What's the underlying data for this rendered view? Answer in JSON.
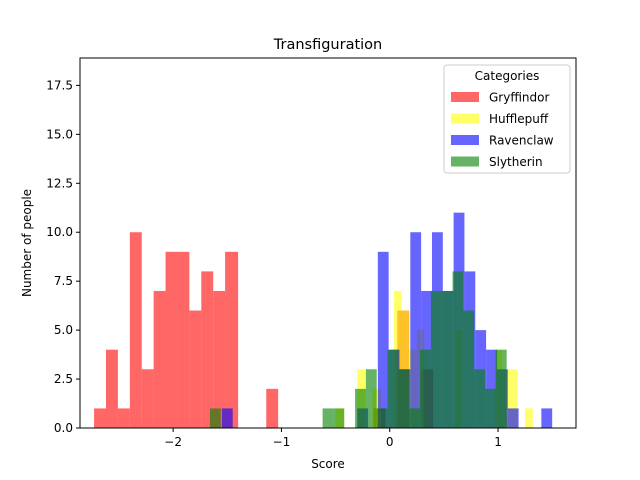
{
  "chart_data": {
    "type": "histogram",
    "title": "Transfiguration",
    "xlabel": "Score",
    "ylabel": "Number of people",
    "xlim": [
      -2.86,
      1.72
    ],
    "ylim": [
      0,
      18.9
    ],
    "xticks": [
      -2,
      -1,
      0,
      1
    ],
    "xtick_labels": [
      "−2",
      "−1",
      "0",
      "1"
    ],
    "yticks": [
      0,
      2.5,
      5,
      7.5,
      10,
      12.5,
      15,
      17.5
    ],
    "ytick_labels": [
      "0.0",
      "2.5",
      "5.0",
      "7.5",
      "10.0",
      "12.5",
      "15.0",
      "17.5"
    ],
    "legend": {
      "title": "Categories",
      "placement": "upper-right"
    },
    "series": [
      {
        "name": "Gryffindor",
        "color": "#ff0000",
        "bins": [
          {
            "x0": -2.73,
            "x1": -2.62,
            "count": 1
          },
          {
            "x0": -2.62,
            "x1": -2.51,
            "count": 4
          },
          {
            "x0": -2.51,
            "x1": -2.4,
            "count": 1
          },
          {
            "x0": -2.4,
            "x1": -2.29,
            "count": 10
          },
          {
            "x0": -2.29,
            "x1": -2.18,
            "count": 3
          },
          {
            "x0": -2.18,
            "x1": -2.07,
            "count": 7
          },
          {
            "x0": -2.07,
            "x1": -1.96,
            "count": 9
          },
          {
            "x0": -1.96,
            "x1": -1.85,
            "count": 9
          },
          {
            "x0": -1.85,
            "x1": -1.74,
            "count": 6
          },
          {
            "x0": -1.74,
            "x1": -1.63,
            "count": 8
          },
          {
            "x0": -1.63,
            "x1": -1.52,
            "count": 7
          },
          {
            "x0": -1.52,
            "x1": -1.4,
            "count": 9
          },
          {
            "x0": -1.14,
            "x1": -1.03,
            "count": 2
          },
          {
            "x0": -0.15,
            "x1": -0.04,
            "count": 1
          },
          {
            "x0": 0.07,
            "x1": 0.18,
            "count": 6
          },
          {
            "x0": 0.29,
            "x1": 0.4,
            "count": 3
          }
        ]
      },
      {
        "name": "Hufflepuff",
        "color": "#ffff00",
        "bins": [
          {
            "x0": -0.5,
            "x1": -0.42,
            "count": 1
          },
          {
            "x0": -0.3,
            "x1": -0.22,
            "count": 3
          },
          {
            "x0": -0.16,
            "x1": -0.08,
            "count": 2
          },
          {
            "x0": 0.04,
            "x1": 0.11,
            "count": 7
          },
          {
            "x0": 0.11,
            "x1": 0.18,
            "count": 6
          },
          {
            "x0": 0.18,
            "x1": 0.25,
            "count": 4
          },
          {
            "x0": 0.25,
            "x1": 0.32,
            "count": 5
          },
          {
            "x0": 0.6,
            "x1": 0.67,
            "count": 5
          },
          {
            "x0": 0.97,
            "x1": 1.04,
            "count": 4
          },
          {
            "x0": 1.04,
            "x1": 1.11,
            "count": 3
          },
          {
            "x0": 1.11,
            "x1": 1.18,
            "count": 3
          },
          {
            "x0": 1.25,
            "x1": 1.32,
            "count": 1
          }
        ]
      },
      {
        "name": "Ravenclaw",
        "color": "#0000ff",
        "bins": [
          {
            "x0": -1.55,
            "x1": -1.45,
            "count": 1
          },
          {
            "x0": -0.3,
            "x1": -0.2,
            "count": 1
          },
          {
            "x0": -0.11,
            "x1": -0.01,
            "count": 9
          },
          {
            "x0": -0.01,
            "x1": 0.09,
            "count": 4
          },
          {
            "x0": 0.09,
            "x1": 0.19,
            "count": 3
          },
          {
            "x0": 0.19,
            "x1": 0.29,
            "count": 10
          },
          {
            "x0": 0.29,
            "x1": 0.39,
            "count": 7
          },
          {
            "x0": 0.39,
            "x1": 0.49,
            "count": 10
          },
          {
            "x0": 0.49,
            "x1": 0.59,
            "count": 7
          },
          {
            "x0": 0.59,
            "x1": 0.69,
            "count": 11
          },
          {
            "x0": 0.69,
            "x1": 0.79,
            "count": 8
          },
          {
            "x0": 0.79,
            "x1": 0.89,
            "count": 5
          },
          {
            "x0": 0.89,
            "x1": 0.99,
            "count": 4
          },
          {
            "x0": 0.99,
            "x1": 1.09,
            "count": 3
          },
          {
            "x0": 1.09,
            "x1": 1.19,
            "count": 1
          },
          {
            "x0": 1.4,
            "x1": 1.5,
            "count": 1
          }
        ]
      },
      {
        "name": "Slytherin",
        "color": "#008000",
        "bins": [
          {
            "x0": -1.66,
            "x1": -1.56,
            "count": 1
          },
          {
            "x0": -0.62,
            "x1": -0.52,
            "count": 1
          },
          {
            "x0": -0.52,
            "x1": -0.42,
            "count": 1
          },
          {
            "x0": -0.32,
            "x1": -0.22,
            "count": 2
          },
          {
            "x0": -0.22,
            "x1": -0.12,
            "count": 3
          },
          {
            "x0": -0.12,
            "x1": -0.02,
            "count": 1
          },
          {
            "x0": -0.02,
            "x1": 0.08,
            "count": 4
          },
          {
            "x0": 0.08,
            "x1": 0.18,
            "count": 3
          },
          {
            "x0": 0.18,
            "x1": 0.28,
            "count": 1
          },
          {
            "x0": 0.28,
            "x1": 0.38,
            "count": 4
          },
          {
            "x0": 0.38,
            "x1": 0.48,
            "count": 7
          },
          {
            "x0": 0.48,
            "x1": 0.58,
            "count": 7
          },
          {
            "x0": 0.58,
            "x1": 0.68,
            "count": 8
          },
          {
            "x0": 0.68,
            "x1": 0.78,
            "count": 6
          },
          {
            "x0": 0.78,
            "x1": 0.88,
            "count": 3
          },
          {
            "x0": 0.88,
            "x1": 0.98,
            "count": 2
          },
          {
            "x0": 0.98,
            "x1": 1.08,
            "count": 4
          }
        ]
      }
    ]
  }
}
